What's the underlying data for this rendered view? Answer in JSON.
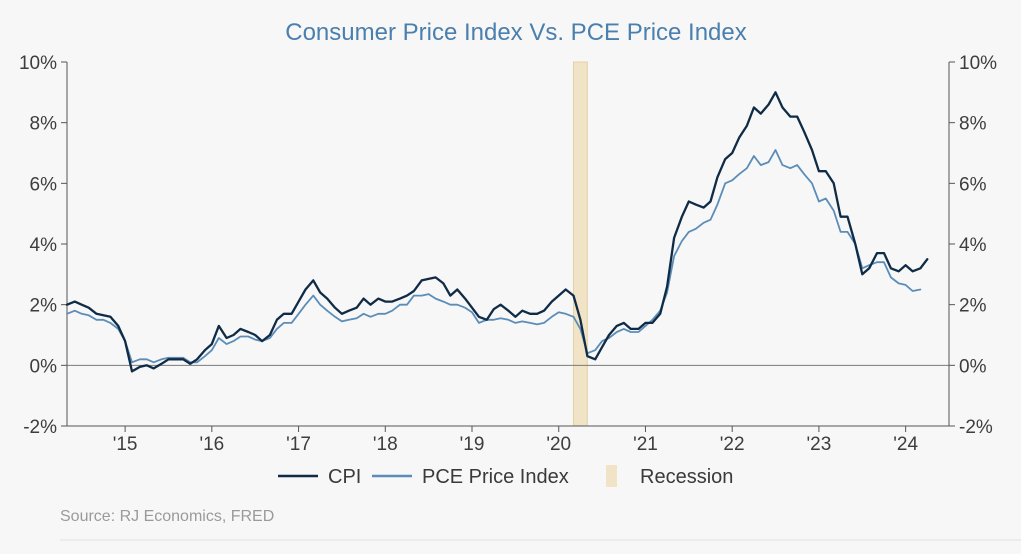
{
  "chart_data": {
    "type": "line",
    "title": "Consumer Price Index Vs. PCE Price Index",
    "source": "Source: RJ Economics, FRED",
    "ylim": [
      -2,
      10
    ],
    "xlim": [
      2014.33,
      2024.5
    ],
    "y_ticks": [
      "10%",
      "8%",
      "6%",
      "4%",
      "2%",
      "0%",
      "-2%"
    ],
    "y_tick_values": [
      10,
      8,
      6,
      4,
      2,
      0,
      -2
    ],
    "x_ticks": [
      "'15",
      "'16",
      "'17",
      "'18",
      "'19",
      "'20",
      "'21",
      "'22",
      "'23",
      "'24"
    ],
    "x_tick_values": [
      2015,
      2016,
      2017,
      2018,
      2019,
      2020,
      2021,
      2022,
      2023,
      2024
    ],
    "recession": {
      "label": "Recession",
      "start": 2020.17,
      "end": 2020.33,
      "color": "#f0e3c6"
    },
    "legend": {
      "position": "bottom"
    },
    "series": [
      {
        "name": "CPI",
        "color": "#0f2b45",
        "points": [
          [
            2014.33,
            2.0
          ],
          [
            2014.42,
            2.1
          ],
          [
            2014.5,
            2.0
          ],
          [
            2014.58,
            1.9
          ],
          [
            2014.67,
            1.7
          ],
          [
            2014.75,
            1.65
          ],
          [
            2014.83,
            1.6
          ],
          [
            2014.92,
            1.3
          ],
          [
            2015.0,
            0.8
          ],
          [
            2015.08,
            -0.2
          ],
          [
            2015.17,
            -0.05
          ],
          [
            2015.25,
            0.0
          ],
          [
            2015.33,
            -0.1
          ],
          [
            2015.42,
            0.05
          ],
          [
            2015.5,
            0.2
          ],
          [
            2015.58,
            0.2
          ],
          [
            2015.67,
            0.2
          ],
          [
            2015.75,
            0.05
          ],
          [
            2015.83,
            0.2
          ],
          [
            2015.92,
            0.5
          ],
          [
            2016.0,
            0.7
          ],
          [
            2016.08,
            1.3
          ],
          [
            2016.17,
            0.9
          ],
          [
            2016.25,
            1.0
          ],
          [
            2016.33,
            1.2
          ],
          [
            2016.42,
            1.1
          ],
          [
            2016.5,
            1.0
          ],
          [
            2016.58,
            0.8
          ],
          [
            2016.67,
            1.0
          ],
          [
            2016.75,
            1.5
          ],
          [
            2016.83,
            1.7
          ],
          [
            2016.92,
            1.7
          ],
          [
            2017.0,
            2.1
          ],
          [
            2017.08,
            2.5
          ],
          [
            2017.17,
            2.8
          ],
          [
            2017.25,
            2.4
          ],
          [
            2017.33,
            2.2
          ],
          [
            2017.42,
            1.9
          ],
          [
            2017.5,
            1.7
          ],
          [
            2017.58,
            1.8
          ],
          [
            2017.67,
            1.9
          ],
          [
            2017.75,
            2.2
          ],
          [
            2017.83,
            2.0
          ],
          [
            2017.92,
            2.2
          ],
          [
            2018.0,
            2.1
          ],
          [
            2018.08,
            2.1
          ],
          [
            2018.17,
            2.2
          ],
          [
            2018.25,
            2.3
          ],
          [
            2018.33,
            2.45
          ],
          [
            2018.42,
            2.8
          ],
          [
            2018.5,
            2.85
          ],
          [
            2018.58,
            2.9
          ],
          [
            2018.67,
            2.7
          ],
          [
            2018.75,
            2.3
          ],
          [
            2018.83,
            2.5
          ],
          [
            2018.92,
            2.2
          ],
          [
            2019.0,
            1.9
          ],
          [
            2019.08,
            1.6
          ],
          [
            2019.17,
            1.5
          ],
          [
            2019.25,
            1.85
          ],
          [
            2019.33,
            2.0
          ],
          [
            2019.42,
            1.8
          ],
          [
            2019.5,
            1.6
          ],
          [
            2019.58,
            1.8
          ],
          [
            2019.67,
            1.7
          ],
          [
            2019.75,
            1.7
          ],
          [
            2019.83,
            1.8
          ],
          [
            2019.92,
            2.1
          ],
          [
            2020.0,
            2.3
          ],
          [
            2020.08,
            2.5
          ],
          [
            2020.17,
            2.3
          ],
          [
            2020.25,
            1.5
          ],
          [
            2020.33,
            0.3
          ],
          [
            2020.42,
            0.2
          ],
          [
            2020.5,
            0.6
          ],
          [
            2020.58,
            1.0
          ],
          [
            2020.67,
            1.3
          ],
          [
            2020.75,
            1.4
          ],
          [
            2020.83,
            1.2
          ],
          [
            2020.92,
            1.2
          ],
          [
            2021.0,
            1.4
          ],
          [
            2021.08,
            1.4
          ],
          [
            2021.17,
            1.7
          ],
          [
            2021.25,
            2.6
          ],
          [
            2021.33,
            4.2
          ],
          [
            2021.42,
            4.9
          ],
          [
            2021.5,
            5.4
          ],
          [
            2021.58,
            5.3
          ],
          [
            2021.67,
            5.2
          ],
          [
            2021.75,
            5.4
          ],
          [
            2021.83,
            6.2
          ],
          [
            2021.92,
            6.8
          ],
          [
            2022.0,
            7.0
          ],
          [
            2022.08,
            7.5
          ],
          [
            2022.17,
            7.9
          ],
          [
            2022.25,
            8.5
          ],
          [
            2022.33,
            8.3
          ],
          [
            2022.42,
            8.6
          ],
          [
            2022.5,
            9.0
          ],
          [
            2022.58,
            8.5
          ],
          [
            2022.67,
            8.2
          ],
          [
            2022.75,
            8.2
          ],
          [
            2022.83,
            7.7
          ],
          [
            2022.92,
            7.1
          ],
          [
            2023.0,
            6.4
          ],
          [
            2023.08,
            6.4
          ],
          [
            2023.17,
            6.0
          ],
          [
            2023.25,
            4.9
          ],
          [
            2023.33,
            4.9
          ],
          [
            2023.42,
            4.0
          ],
          [
            2023.5,
            3.0
          ],
          [
            2023.58,
            3.2
          ],
          [
            2023.67,
            3.7
          ],
          [
            2023.75,
            3.7
          ],
          [
            2023.83,
            3.2
          ],
          [
            2023.92,
            3.1
          ],
          [
            2024.0,
            3.3
          ],
          [
            2024.08,
            3.1
          ],
          [
            2024.17,
            3.2
          ],
          [
            2024.25,
            3.5
          ]
        ]
      },
      {
        "name": "PCE Price Index",
        "color": "#5b8db8",
        "points": [
          [
            2014.33,
            1.7
          ],
          [
            2014.42,
            1.8
          ],
          [
            2014.5,
            1.7
          ],
          [
            2014.58,
            1.65
          ],
          [
            2014.67,
            1.5
          ],
          [
            2014.75,
            1.5
          ],
          [
            2014.83,
            1.4
          ],
          [
            2014.92,
            1.2
          ],
          [
            2015.0,
            0.8
          ],
          [
            2015.08,
            0.1
          ],
          [
            2015.17,
            0.2
          ],
          [
            2015.25,
            0.2
          ],
          [
            2015.33,
            0.1
          ],
          [
            2015.42,
            0.2
          ],
          [
            2015.5,
            0.25
          ],
          [
            2015.58,
            0.25
          ],
          [
            2015.67,
            0.25
          ],
          [
            2015.75,
            0.1
          ],
          [
            2015.83,
            0.1
          ],
          [
            2015.92,
            0.3
          ],
          [
            2016.0,
            0.5
          ],
          [
            2016.08,
            0.9
          ],
          [
            2016.17,
            0.7
          ],
          [
            2016.25,
            0.8
          ],
          [
            2016.33,
            0.95
          ],
          [
            2016.42,
            0.95
          ],
          [
            2016.5,
            0.85
          ],
          [
            2016.58,
            0.8
          ],
          [
            2016.67,
            0.9
          ],
          [
            2016.75,
            1.2
          ],
          [
            2016.83,
            1.4
          ],
          [
            2016.92,
            1.4
          ],
          [
            2017.0,
            1.7
          ],
          [
            2017.08,
            2.0
          ],
          [
            2017.17,
            2.3
          ],
          [
            2017.25,
            2.0
          ],
          [
            2017.33,
            1.8
          ],
          [
            2017.42,
            1.6
          ],
          [
            2017.5,
            1.45
          ],
          [
            2017.58,
            1.5
          ],
          [
            2017.67,
            1.55
          ],
          [
            2017.75,
            1.7
          ],
          [
            2017.83,
            1.6
          ],
          [
            2017.92,
            1.7
          ],
          [
            2018.0,
            1.7
          ],
          [
            2018.08,
            1.8
          ],
          [
            2018.17,
            2.0
          ],
          [
            2018.25,
            2.0
          ],
          [
            2018.33,
            2.3
          ],
          [
            2018.42,
            2.3
          ],
          [
            2018.5,
            2.35
          ],
          [
            2018.58,
            2.2
          ],
          [
            2018.67,
            2.1
          ],
          [
            2018.75,
            2.0
          ],
          [
            2018.83,
            2.0
          ],
          [
            2018.92,
            1.9
          ],
          [
            2019.0,
            1.75
          ],
          [
            2019.08,
            1.4
          ],
          [
            2019.17,
            1.5
          ],
          [
            2019.25,
            1.5
          ],
          [
            2019.33,
            1.55
          ],
          [
            2019.42,
            1.5
          ],
          [
            2019.5,
            1.4
          ],
          [
            2019.58,
            1.45
          ],
          [
            2019.67,
            1.4
          ],
          [
            2019.75,
            1.35
          ],
          [
            2019.83,
            1.4
          ],
          [
            2019.92,
            1.6
          ],
          [
            2020.0,
            1.75
          ],
          [
            2020.08,
            1.7
          ],
          [
            2020.17,
            1.6
          ],
          [
            2020.25,
            1.2
          ],
          [
            2020.33,
            0.4
          ],
          [
            2020.42,
            0.5
          ],
          [
            2020.5,
            0.8
          ],
          [
            2020.58,
            0.9
          ],
          [
            2020.67,
            1.1
          ],
          [
            2020.75,
            1.2
          ],
          [
            2020.83,
            1.1
          ],
          [
            2020.92,
            1.1
          ],
          [
            2021.0,
            1.3
          ],
          [
            2021.08,
            1.5
          ],
          [
            2021.17,
            1.8
          ],
          [
            2021.25,
            2.4
          ],
          [
            2021.33,
            3.6
          ],
          [
            2021.42,
            4.1
          ],
          [
            2021.5,
            4.4
          ],
          [
            2021.58,
            4.5
          ],
          [
            2021.67,
            4.7
          ],
          [
            2021.75,
            4.8
          ],
          [
            2021.83,
            5.3
          ],
          [
            2021.92,
            6.0
          ],
          [
            2022.0,
            6.1
          ],
          [
            2022.08,
            6.3
          ],
          [
            2022.17,
            6.5
          ],
          [
            2022.25,
            6.9
          ],
          [
            2022.33,
            6.6
          ],
          [
            2022.42,
            6.7
          ],
          [
            2022.5,
            7.1
          ],
          [
            2022.58,
            6.6
          ],
          [
            2022.67,
            6.5
          ],
          [
            2022.75,
            6.6
          ],
          [
            2022.83,
            6.3
          ],
          [
            2022.92,
            6.0
          ],
          [
            2023.0,
            5.4
          ],
          [
            2023.08,
            5.5
          ],
          [
            2023.17,
            5.1
          ],
          [
            2023.25,
            4.4
          ],
          [
            2023.33,
            4.4
          ],
          [
            2023.42,
            4.0
          ],
          [
            2023.5,
            3.2
          ],
          [
            2023.58,
            3.3
          ],
          [
            2023.67,
            3.4
          ],
          [
            2023.75,
            3.4
          ],
          [
            2023.83,
            2.9
          ],
          [
            2023.92,
            2.7
          ],
          [
            2024.0,
            2.65
          ],
          [
            2024.08,
            2.45
          ],
          [
            2024.17,
            2.5
          ]
        ]
      }
    ]
  }
}
